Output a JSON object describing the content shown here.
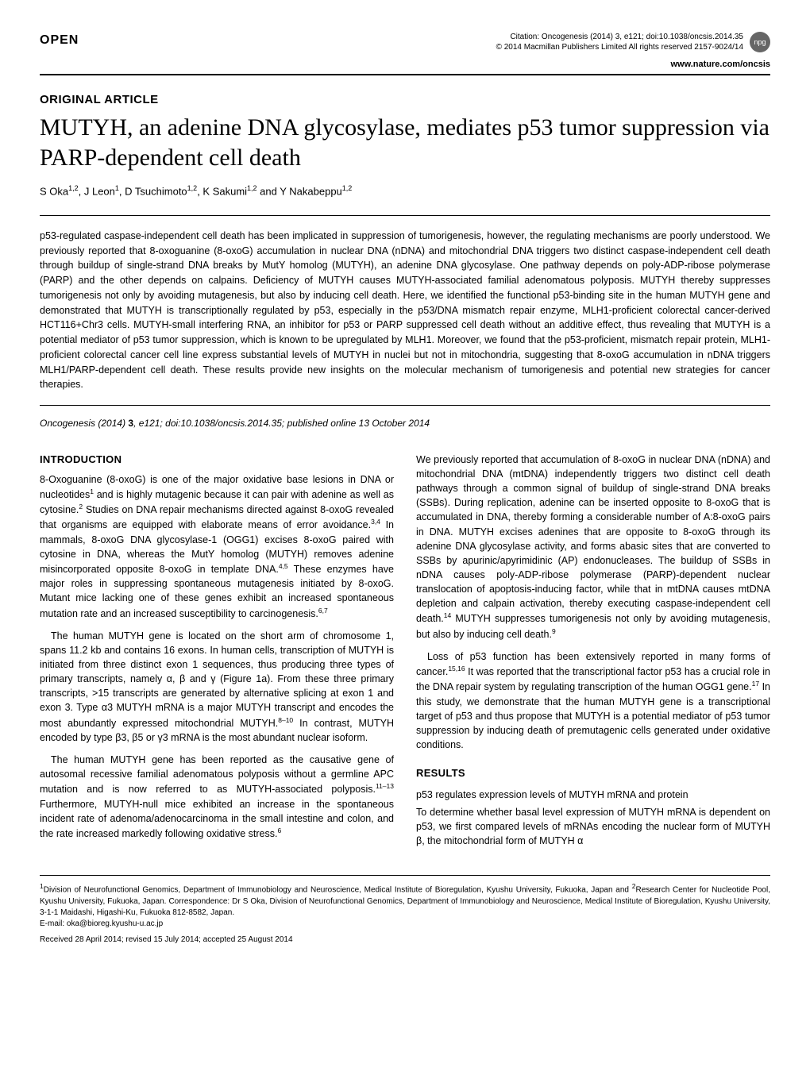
{
  "header": {
    "open_label": "OPEN",
    "citation_line1": "Citation: Oncogenesis (2014) 3, e121; doi:10.1038/oncsis.2014.35",
    "citation_line2": "© 2014 Macmillan Publishers Limited  All rights reserved 2157-9024/14",
    "npg": "npg",
    "site_url": "www.nature.com/oncsis"
  },
  "article": {
    "type": "ORIGINAL ARTICLE",
    "title": "MUTYH, an adenine DNA glycosylase, mediates p53 tumor suppression via PARP-dependent cell death",
    "authors": "S Oka<sup>1,2</sup>, J Leon<sup>1</sup>, D Tsuchimoto<sup>1,2</sup>, K Sakumi<sup>1,2</sup> and Y Nakabeppu<sup>1,2</sup>",
    "abstract": "p53-regulated caspase-independent cell death has been implicated in suppression of tumorigenesis, however, the regulating mechanisms are poorly understood. We previously reported that 8-oxoguanine (8-oxoG) accumulation in nuclear DNA (nDNA) and mitochondrial DNA triggers two distinct caspase-independent cell death through buildup of single-strand DNA breaks by MutY homolog (MUTYH), an adenine DNA glycosylase. One pathway depends on poly-ADP-ribose polymerase (PARP) and the other depends on calpains. Deficiency of MUTYH causes MUTYH-associated familial adenomatous polyposis. MUTYH thereby suppresses tumorigenesis not only by avoiding mutagenesis, but also by inducing cell death. Here, we identified the functional p53-binding site in the human MUTYH gene and demonstrated that MUTYH is transcriptionally regulated by p53, especially in the p53/DNA mismatch repair enzyme, MLH1-proficient colorectal cancer-derived HCT116+Chr3 cells. MUTYH-small interfering RNA, an inhibitor for p53 or PARP suppressed cell death without an additive effect, thus revealing that MUTYH is a potential mediator of p53 tumor suppression, which is known to be upregulated by MLH1. Moreover, we found that the p53-proficient, mismatch repair protein, MLH1-proficient colorectal cancer cell line express substantial levels of MUTYH in nuclei but not in mitochondria, suggesting that 8-oxoG accumulation in nDNA triggers MLH1/PARP-dependent cell death. These results provide new insights on the molecular mechanism of tumorigenesis and potential new strategies for cancer therapies.",
    "pub_line": "Oncogenesis (2014) 3, e121; doi:10.1038/oncsis.2014.35; published online 13 October 2014"
  },
  "left": {
    "intro_head": "INTRODUCTION",
    "p1": "8-Oxoguanine (8-oxoG) is one of the major oxidative base lesions in DNA or nucleotides<sup>1</sup> and is highly mutagenic because it can pair with adenine as well as cytosine.<sup>2</sup> Studies on DNA repair mechanisms directed against 8-oxoG revealed that organisms are equipped with elaborate means of error avoidance.<sup>3,4</sup> In mammals, 8-oxoG DNA glycosylase-1 (OGG1) excises 8-oxoG paired with cytosine in DNA, whereas the MutY homolog (MUTYH) removes adenine misincorporated opposite 8-oxoG in template DNA.<sup>4,5</sup> These enzymes have major roles in suppressing spontaneous mutagenesis initiated by 8-oxoG. Mutant mice lacking one of these genes exhibit an increased spontaneous mutation rate and an increased susceptibility to carcinogenesis.<sup>6,7</sup>",
    "p2": "The human MUTYH gene is located on the short arm of chromosome 1, spans 11.2 kb and contains 16 exons. In human cells, transcription of MUTYH is initiated from three distinct exon 1 sequences, thus producing three types of primary transcripts, namely α, β and γ (Figure 1a). From these three primary transcripts, >15 transcripts are generated by alternative splicing at exon 1 and exon 3. Type α3 MUTYH mRNA is a major MUTYH transcript and encodes the most abundantly expressed mitochondrial MUTYH.<sup>8–10</sup> In contrast, MUTYH encoded by type β3, β5 or γ3 mRNA is the most abundant nuclear isoform.",
    "p3": "The human MUTYH gene has been reported as the causative gene of autosomal recessive familial adenomatous polyposis without a germline APC mutation and is now referred to as MUTYH-associated polyposis.<sup>11–13</sup> Furthermore, MUTYH-null mice exhibited an increase in the spontaneous incident rate of adenoma/adenocarcinoma in the small intestine and colon, and the rate increased markedly following oxidative stress.<sup>6</sup>"
  },
  "right": {
    "p1": "We previously reported that accumulation of 8-oxoG in nuclear DNA (nDNA) and mitochondrial DNA (mtDNA) independently triggers two distinct cell death pathways through a common signal of buildup of single-strand DNA breaks (SSBs). During replication, adenine can be inserted opposite to 8-oxoG that is accumulated in DNA, thereby forming a considerable number of A:8-oxoG pairs in DNA. MUTYH excises adenines that are opposite to 8-oxoG through its adenine DNA glycosylase activity, and forms abasic sites that are converted to SSBs by apurinic/apyrimidinic (AP) endonucleases. The buildup of SSBs in nDNA causes poly-ADP-ribose polymerase (PARP)-dependent nuclear translocation of apoptosis-inducing factor, while that in mtDNA causes mtDNA depletion and calpain activation, thereby executing caspase-independent cell death.<sup>14</sup> MUTYH suppresses tumorigenesis not only by avoiding mutagenesis, but also by inducing cell death.<sup>9</sup>",
    "p2": "Loss of p53 function has been extensively reported in many forms of cancer.<sup>15,16</sup> It was reported that the transcriptional factor p53 has a crucial role in the DNA repair system by regulating transcription of the human OGG1 gene.<sup>17</sup> In this study, we demonstrate that the human MUTYH gene is a transcriptional target of p53 and thus propose that MUTYH is a potential mediator of p53 tumor suppression by inducing death of premutagenic cells generated under oxidative conditions.",
    "results_head": "RESULTS",
    "sub_head": "p53 regulates expression levels of MUTYH mRNA and protein",
    "p3": "To determine whether basal level expression of MUTYH mRNA is dependent on p53, we first compared levels of mRNAs encoding the nuclear form of MUTYH β, the mitochondrial form of MUTYH α"
  },
  "footer": {
    "affil": "<sup>1</sup>Division of Neurofunctional Genomics, Department of Immunobiology and Neuroscience, Medical Institute of Bioregulation, Kyushu University, Fukuoka, Japan and <sup>2</sup>Research Center for Nucleotide Pool, Kyushu University, Fukuoka, Japan. Correspondence: Dr S Oka, Division of Neurofunctional Genomics, Department of Immunobiology and Neuroscience, Medical Institute of Bioregulation, Kyushu University, 3-1-1 Maidashi, Higashi-Ku, Fukuoka 812-8582, Japan.",
    "email": "E-mail: oka@bioreg.kyushu-u.ac.jp",
    "received": "Received 28 April 2014; revised 15 July 2014; accepted 25 August 2014"
  }
}
